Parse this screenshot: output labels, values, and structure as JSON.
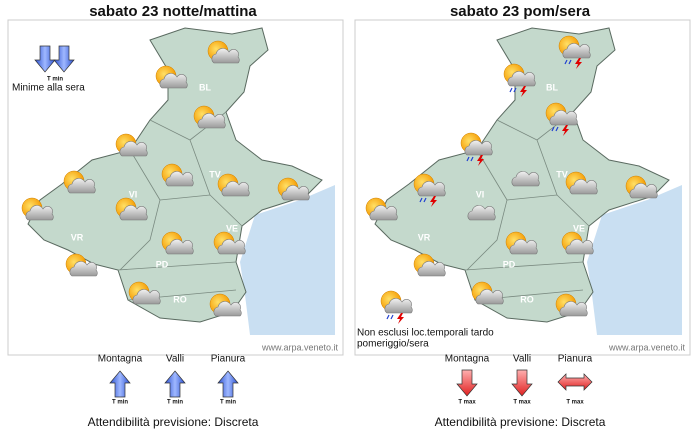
{
  "panels": [
    {
      "title": "sabato 23 notte/mattina",
      "top_arrow_label": "T min",
      "note": [
        "Minime alla sera"
      ],
      "provinces": [
        "BL",
        "TV",
        "VI",
        "VE",
        "VR",
        "PD",
        "RO"
      ],
      "watermark": "www.arpa.veneto.it",
      "legend": {
        "labels": [
          "Montagna",
          "Valli",
          "Pianura"
        ],
        "arrow_labels": [
          "T min",
          "T min",
          "T min"
        ]
      },
      "reliability": "Attendibilità previsione: Discreta"
    },
    {
      "title": "sabato 23 pom/sera",
      "note": [
        "Non esclusi loc.temporali tardo",
        "pomeriggio/sera"
      ],
      "provinces": [
        "BL",
        "TV",
        "VI",
        "VE",
        "VR",
        "PD",
        "RO"
      ],
      "watermark": "www.arpa.veneto.it",
      "legend": {
        "labels": [
          "Montagna",
          "Valli",
          "Pianura"
        ],
        "arrow_labels": [
          "T max",
          "T max",
          "T max"
        ]
      },
      "reliability": "Attendibilità previsione: Discreta"
    }
  ]
}
